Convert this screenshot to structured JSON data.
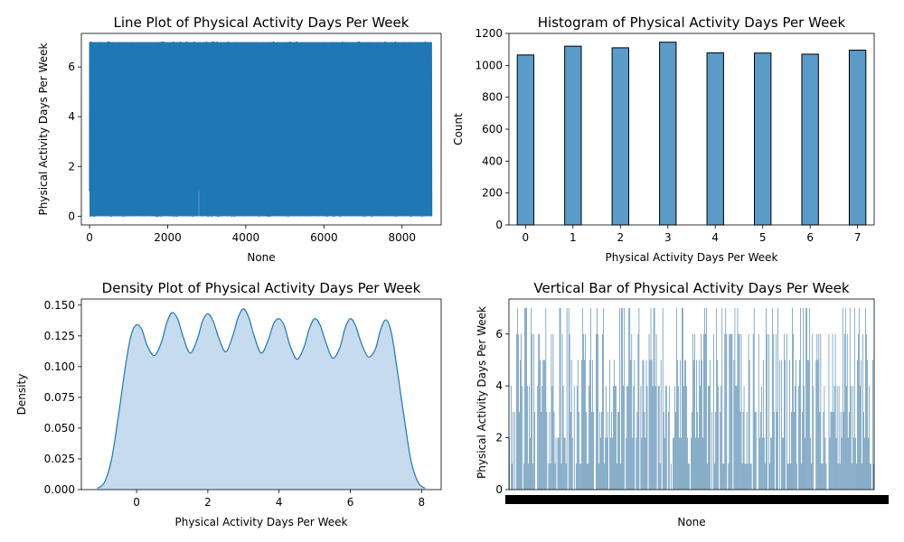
{
  "chart_data": [
    {
      "type": "line",
      "title": "Line Plot of Physical Activity Days Per Week",
      "xlabel": "None",
      "ylabel": "Physical Activity Days Per Week",
      "xlim": [
        -210,
        9000
      ],
      "ylim": [
        -0.35,
        7.35
      ],
      "xticks": [
        0,
        2000,
        4000,
        6000,
        8000
      ],
      "yticks": [
        0,
        2,
        4,
        6
      ],
      "n_points": 8763,
      "value_range": [
        0,
        7
      ],
      "color": "#1f77b4",
      "grid": false
    },
    {
      "type": "bar",
      "title": "Histogram of Physical Activity Days Per Week",
      "xlabel": "Physical Activity Days Per Week",
      "ylabel": "Count",
      "categories": [
        "0",
        "1",
        "2",
        "3",
        "4",
        "5",
        "6",
        "7"
      ],
      "x": [
        0,
        1,
        2,
        3,
        4,
        5,
        6,
        7
      ],
      "values": [
        1065,
        1120,
        1110,
        1145,
        1078,
        1077,
        1070,
        1095
      ],
      "bin_width": 0.35,
      "xlim": [
        -0.35,
        7.35
      ],
      "ylim": [
        0,
        1200
      ],
      "xticks": [
        0,
        1,
        2,
        3,
        4,
        5,
        6,
        7
      ],
      "yticks": [
        0,
        200,
        400,
        600,
        800,
        1000,
        1200
      ],
      "color": "#5b9bc8",
      "edgecolor": "#000000",
      "grid": false
    },
    {
      "type": "area",
      "title": "Density Plot of Physical Activity Days Per Week",
      "xlabel": "Physical Activity Days Per Week",
      "ylabel": "Density",
      "x": [
        -1.1,
        -0.9,
        -0.7,
        -0.5,
        -0.3,
        -0.15,
        0.0,
        0.15,
        0.3,
        0.5,
        0.7,
        0.85,
        1.0,
        1.15,
        1.3,
        1.5,
        1.7,
        1.85,
        2.0,
        2.15,
        2.3,
        2.5,
        2.7,
        2.85,
        3.0,
        3.15,
        3.3,
        3.5,
        3.7,
        3.85,
        4.0,
        4.15,
        4.3,
        4.5,
        4.7,
        4.85,
        5.0,
        5.15,
        5.3,
        5.5,
        5.7,
        5.85,
        6.0,
        6.15,
        6.3,
        6.5,
        6.7,
        6.85,
        7.0,
        7.15,
        7.3,
        7.5,
        7.7,
        7.9,
        8.1
      ],
      "y": [
        0.001,
        0.006,
        0.025,
        0.062,
        0.103,
        0.126,
        0.134,
        0.13,
        0.117,
        0.109,
        0.12,
        0.136,
        0.144,
        0.139,
        0.125,
        0.111,
        0.122,
        0.137,
        0.143,
        0.137,
        0.124,
        0.112,
        0.125,
        0.14,
        0.147,
        0.14,
        0.125,
        0.111,
        0.122,
        0.135,
        0.139,
        0.133,
        0.118,
        0.106,
        0.116,
        0.131,
        0.139,
        0.134,
        0.121,
        0.107,
        0.115,
        0.131,
        0.139,
        0.133,
        0.12,
        0.108,
        0.114,
        0.13,
        0.138,
        0.128,
        0.101,
        0.061,
        0.024,
        0.006,
        0.001
      ],
      "xlim": [
        -1.55,
        8.55
      ],
      "ylim": [
        0,
        0.155
      ],
      "xticks": [
        0,
        2,
        4,
        6,
        8
      ],
      "yticks": [
        0,
        0.025,
        0.05,
        0.075,
        0.1,
        0.125,
        0.15
      ],
      "ytick_labels": [
        "0.000",
        "0.025",
        "0.050",
        "0.075",
        "0.100",
        "0.125",
        "0.150"
      ],
      "color": "#1f77b4",
      "fill_color": "#c6dbee",
      "grid": false
    },
    {
      "type": "bar",
      "title": "Vertical Bar of Physical Activity Days Per Week",
      "xlabel": "None",
      "ylabel": "Physical Activity Days Per Week",
      "n_bars": 8763,
      "value_range": [
        0,
        7
      ],
      "ylim": [
        0,
        7.35
      ],
      "yticks": [
        0,
        2,
        4,
        6
      ],
      "color": "#2e6f9e",
      "grid": false
    }
  ]
}
